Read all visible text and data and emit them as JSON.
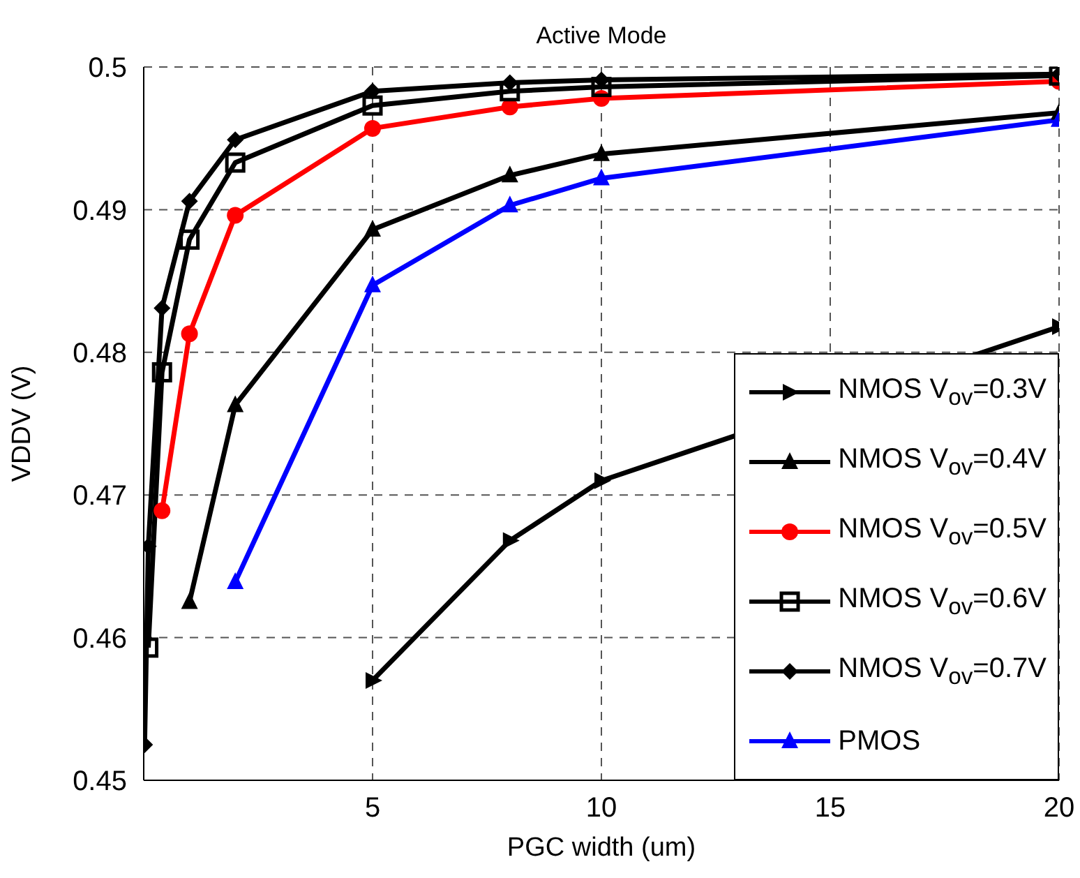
{
  "chart_data": {
    "type": "line",
    "title": "Active Mode",
    "xlabel": "PGC width (um)",
    "ylabel": "VDDV (V)",
    "xlim": [
      0,
      20
    ],
    "xticks": [
      {
        "value": 0,
        "label": null
      },
      5,
      10,
      15,
      20
    ],
    "ylim": [
      0.45,
      0.5
    ],
    "yticks": [
      0.45,
      0.46,
      0.47,
      0.48,
      0.49,
      0.5
    ],
    "grid": true,
    "legend": "bottom right",
    "line_style": "solid",
    "series": [
      {
        "name": "NMOS V$_{ov}$=0.3V",
        "color": "#000000",
        "marker": "triangle-right",
        "x": [
          5,
          8,
          10,
          20
        ],
        "values": [
          0.457,
          0.4668,
          0.471,
          0.4818
        ]
      },
      {
        "name": "NMOS V$_{ov}$=0.4V",
        "color": "#000000",
        "marker": "triangle",
        "x": [
          1,
          2,
          5,
          8,
          10,
          20
        ],
        "values": [
          0.4625,
          0.4763,
          0.4886,
          0.4924,
          0.4939,
          0.4968
        ]
      },
      {
        "name": "NMOS V$_{ov}$=0.5V",
        "color": "#ff0000",
        "marker": "circle",
        "x": [
          0.4,
          1,
          2,
          5,
          8,
          10,
          20
        ],
        "values": [
          0.4689,
          0.4813,
          0.4896,
          0.4957,
          0.4972,
          0.4978,
          0.499
        ]
      },
      {
        "name": "NMOS V$_{ov}$=0.6V",
        "color": "#000000",
        "marker": "square",
        "x": [
          0.1,
          0.4,
          1,
          2,
          5,
          8,
          10,
          20
        ],
        "values": [
          0.4593,
          0.4786,
          0.4879,
          0.4933,
          0.4973,
          0.4983,
          0.4986,
          0.4994
        ]
      },
      {
        "name": "NMOS V$_{ov}$=0.7V",
        "color": "#000000",
        "marker": "diamond",
        "x": [
          0.02,
          0.1,
          0.4,
          1,
          2,
          5,
          8,
          10,
          20
        ],
        "values": [
          0.4525,
          0.4664,
          0.4831,
          0.4906,
          0.4949,
          0.4983,
          0.4989,
          0.4991,
          0.4995
        ]
      },
      {
        "name": "PMOS",
        "color": "#0000ff",
        "marker": "triangle",
        "x": [
          2,
          5,
          8,
          10,
          20
        ],
        "values": [
          0.4639,
          0.4847,
          0.4903,
          0.4922,
          0.4963
        ]
      }
    ]
  }
}
